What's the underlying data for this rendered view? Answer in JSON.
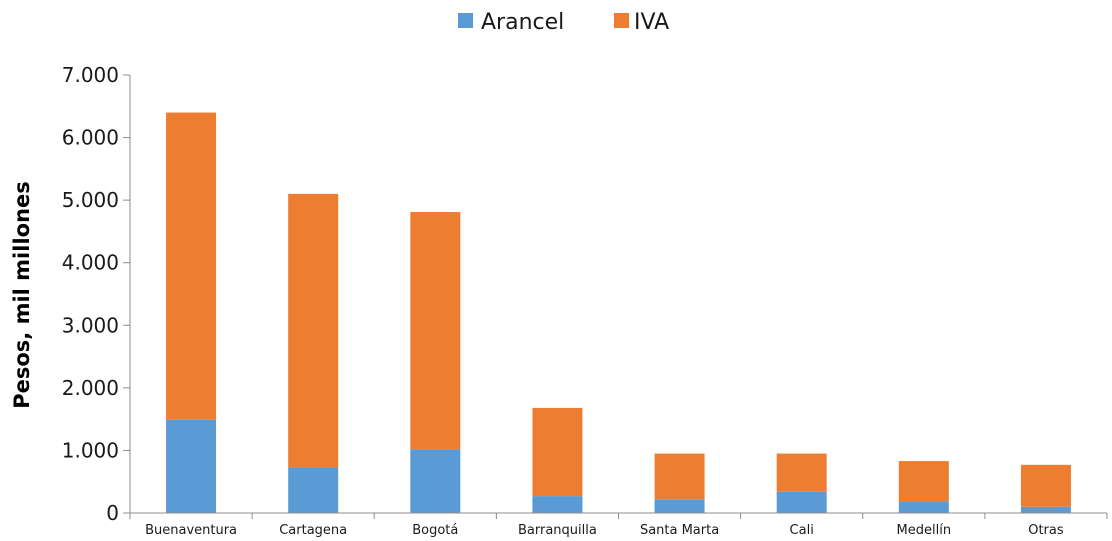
{
  "chart_data": {
    "type": "bar",
    "stacked": true,
    "categories": [
      "Buenaventura",
      "Cartagena",
      "Bogotá",
      "Barranquilla",
      "Santa Marta",
      "Cali",
      "Medellín",
      "Otras"
    ],
    "series": [
      {
        "name": "Arancel",
        "color": "#5B9BD5",
        "values": [
          1490,
          720,
          1020,
          270,
          220,
          340,
          190,
          100
        ]
      },
      {
        "name": "IVA",
        "color": "#ED7D31",
        "values": [
          4910,
          4380,
          3790,
          1410,
          730,
          610,
          640,
          670
        ]
      }
    ],
    "ylabel": "Pesos, mil millones",
    "xlabel": "",
    "ylim": [
      0,
      7000
    ],
    "yticks": [
      0,
      1000,
      2000,
      3000,
      4000,
      5000,
      6000,
      7000
    ],
    "ytick_labels": [
      "0",
      "1.000",
      "2.000",
      "3.000",
      "4.000",
      "5.000",
      "6.000",
      "7.000"
    ],
    "grid": false,
    "legend_position": "top-center"
  }
}
